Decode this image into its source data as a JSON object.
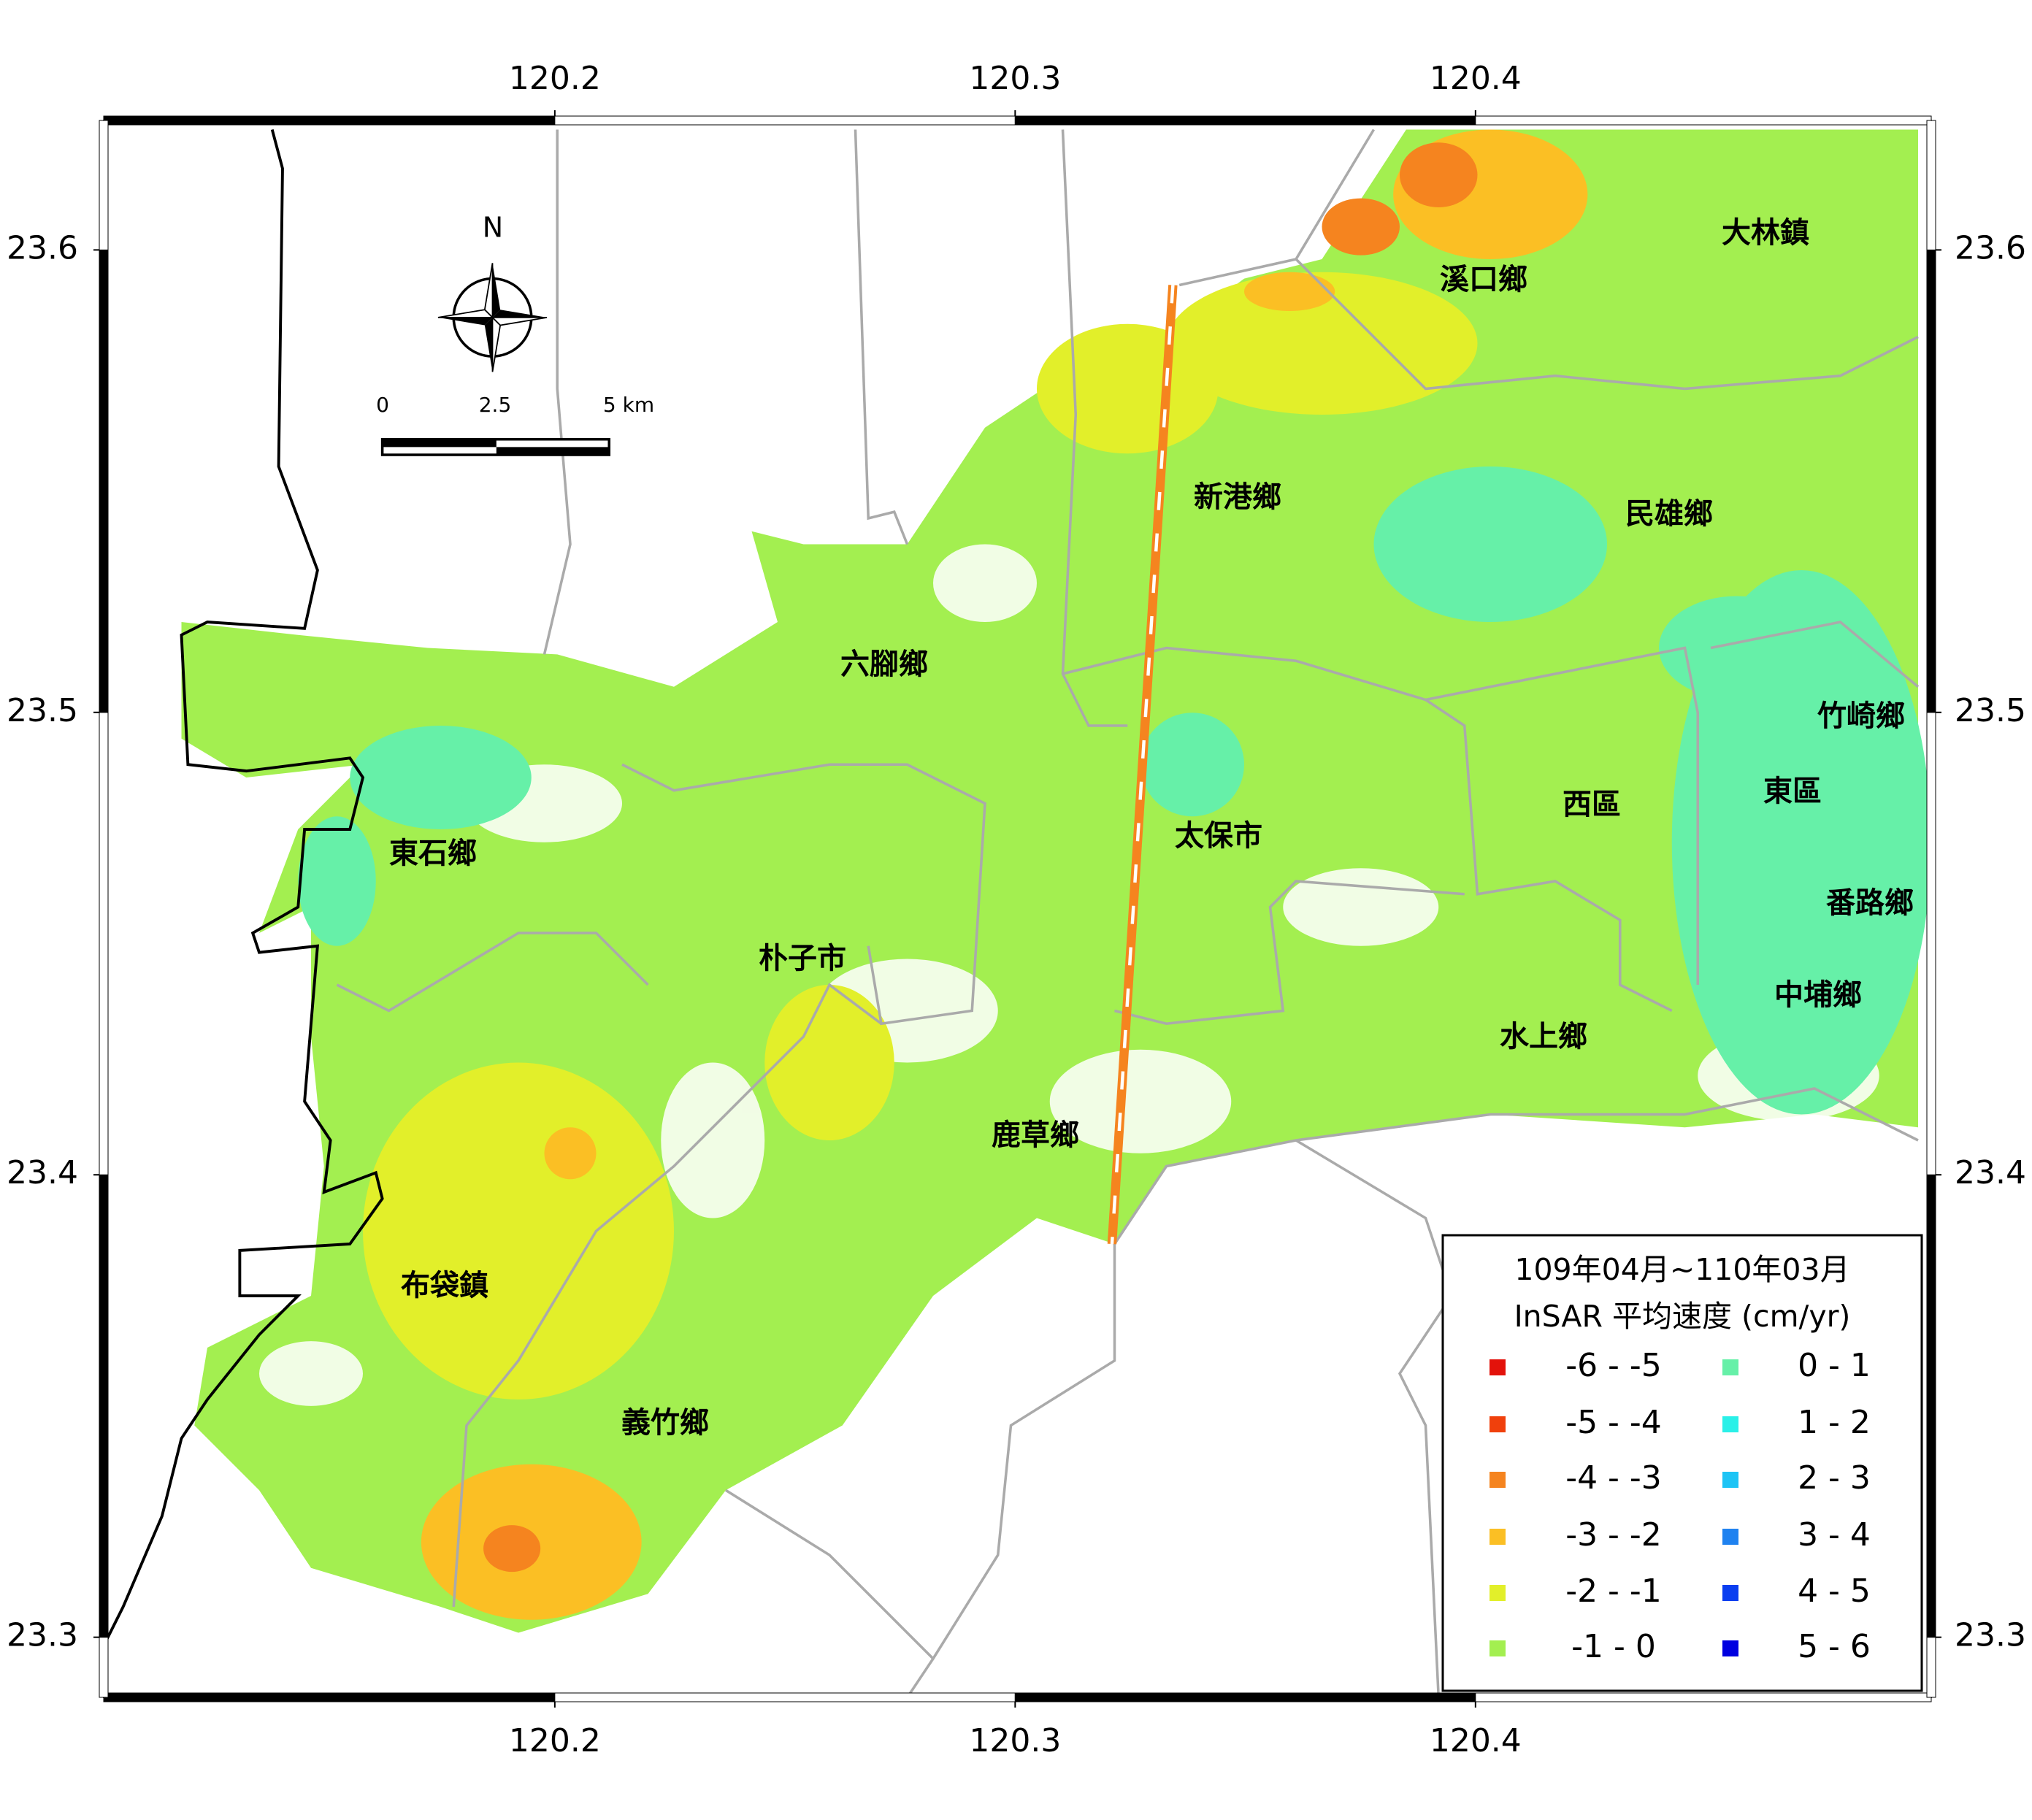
{
  "map": {
    "xlim": [
      120.102,
      120.499
    ],
    "ylim": [
      23.287,
      23.628
    ],
    "xticks": [
      120.2,
      120.3,
      120.4
    ],
    "yticks": [
      23.3,
      23.4,
      23.5,
      23.6
    ],
    "north": "N",
    "scale_bar": {
      "labels": [
        "0",
        "2.5",
        "5 km"
      ]
    },
    "places": [
      "大林鎮",
      "溪口鄉",
      "新港鄉",
      "民雄鄉",
      "六腳鄉",
      "竹崎鄉",
      "東區",
      "西區",
      "太保市",
      "東石鄉",
      "番路鄉",
      "朴子市",
      "中埔鄉",
      "水上鄉",
      "鹿草鄉",
      "布袋鎮",
      "義竹鄉"
    ],
    "legend": {
      "title": [
        "109年04月~110年03月",
        "InSAR 平均速度 (cm/yr)"
      ],
      "items": [
        {
          "label": "-6 - -5",
          "color": "#e3120b"
        },
        {
          "label": "-5 - -4",
          "color": "#f0400c"
        },
        {
          "label": "-4 - -3",
          "color": "#f5841f"
        },
        {
          "label": "-3 - -2",
          "color": "#fbbf24"
        },
        {
          "label": "-2 - -1",
          "color": "#e2ef2a"
        },
        {
          "label": "-1 - 0",
          "color": "#a3ef50"
        },
        {
          "label": "0 - 1",
          "color": "#66f0a8"
        },
        {
          "label": "1 - 2",
          "color": "#2af0e8"
        },
        {
          "label": "2 - 3",
          "color": "#1ec4f5"
        },
        {
          "label": "3 - 4",
          "color": "#1f82f0"
        },
        {
          "label": "4 - 5",
          "color": "#0a3ef0"
        },
        {
          "label": "5 - 6",
          "color": "#0000e0"
        }
      ]
    }
  }
}
